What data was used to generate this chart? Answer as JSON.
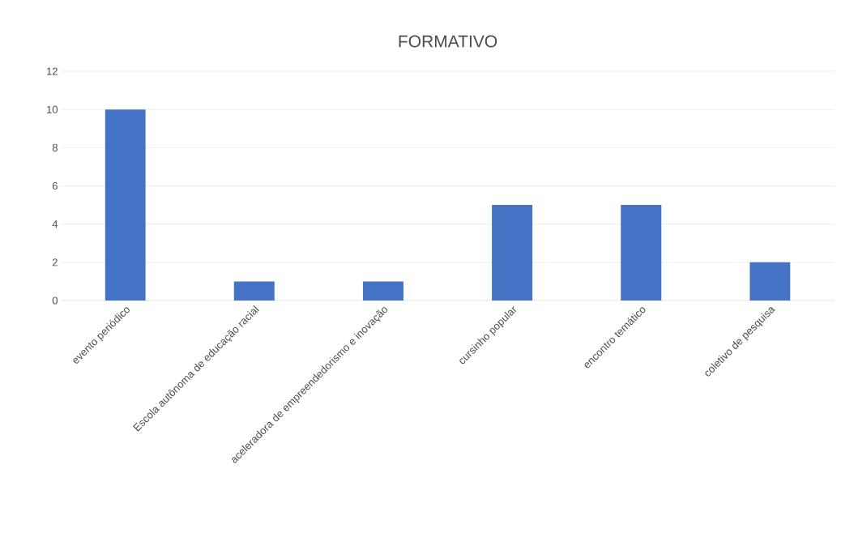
{
  "chart_data": {
    "type": "bar",
    "title": "FORMATIVO",
    "categories": [
      "evento periódico",
      "Escola autônoma de educação racial",
      "aceleradora de empreendedorismo e inovação",
      "cursinho popular",
      "encontro temático",
      "coletivo de pesquisa"
    ],
    "values": [
      10,
      1,
      1,
      5,
      5,
      2
    ],
    "color": "#4472c4",
    "ylim": [
      0,
      12
    ],
    "yticks": [
      0,
      2,
      4,
      6,
      8,
      10,
      12
    ],
    "grid": "y"
  }
}
